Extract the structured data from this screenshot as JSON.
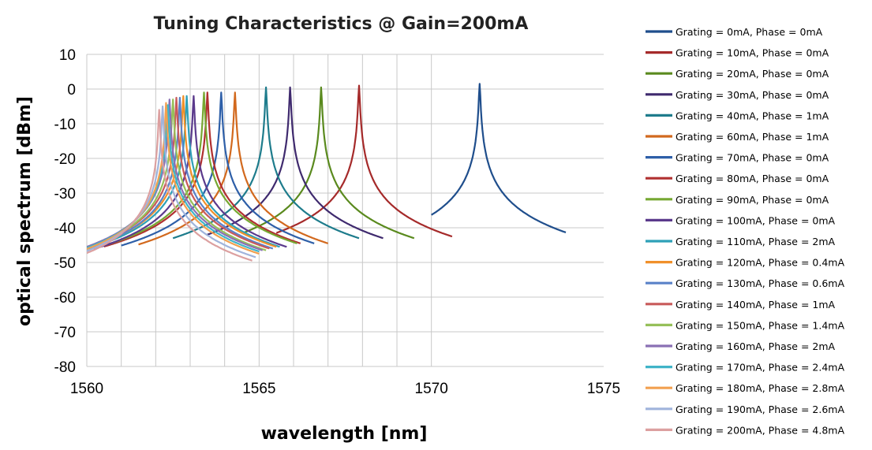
{
  "chart_data": {
    "type": "line",
    "title": "Tuning Characteristics @ Gain=200mA",
    "xlabel": "wavelength [nm]",
    "ylabel": "optical spectrum [dBm]",
    "xlim": [
      1560,
      1575
    ],
    "ylim": [
      -80,
      10
    ],
    "xticks": [
      1560,
      1565,
      1570,
      1575
    ],
    "yticks": [
      10,
      0,
      -10,
      -20,
      -30,
      -40,
      -50,
      -60,
      -70,
      -80
    ],
    "x_gridlines": [
      1560,
      1561,
      1562,
      1563,
      1564,
      1565,
      1566,
      1567,
      1568,
      1569,
      1570
    ],
    "grid": true,
    "legend_position": "right",
    "series": [
      {
        "name": "Grating = 0mA, Phase = 0mA",
        "color": "#1f4e8c",
        "peak_x": 1571.4,
        "peak_y": 1.5,
        "range": [
          1570.0,
          1573.9
        ]
      },
      {
        "name": "Grating = 10mA, Phase = 0mA",
        "color": "#a52a2a",
        "peak_x": 1567.9,
        "peak_y": 1.0,
        "range": [
          1565.5,
          1570.6
        ]
      },
      {
        "name": "Grating = 20mA, Phase = 0mA",
        "color": "#5a8a1e",
        "peak_x": 1566.8,
        "peak_y": 0.5,
        "range": [
          1564.5,
          1569.5
        ]
      },
      {
        "name": "Grating = 30mA, Phase = 0mA",
        "color": "#3f2a6e",
        "peak_x": 1565.9,
        "peak_y": 0.5,
        "range": [
          1563.5,
          1568.6
        ]
      },
      {
        "name": "Grating = 40mA, Phase = 1mA",
        "color": "#1e7c8c",
        "peak_x": 1565.2,
        "peak_y": 0.5,
        "range": [
          1562.5,
          1567.9
        ]
      },
      {
        "name": "Grating = 60mA, Phase = 1mA",
        "color": "#d2691e",
        "peak_x": 1564.3,
        "peak_y": -1.0,
        "range": [
          1561.5,
          1567.0
        ]
      },
      {
        "name": "Grating = 70mA, Phase = 0mA",
        "color": "#2e5fa8",
        "peak_x": 1563.9,
        "peak_y": -1.0,
        "range": [
          1561.0,
          1566.6
        ]
      },
      {
        "name": "Grating = 80mA, Phase = 0mA",
        "color": "#b03030",
        "peak_x": 1563.5,
        "peak_y": -1.0,
        "range": [
          1560.5,
          1566.2
        ]
      },
      {
        "name": "Grating = 90mA, Phase = 0mA",
        "color": "#76a832",
        "peak_x": 1563.4,
        "peak_y": -1.0,
        "range": [
          1560.4,
          1566.1
        ]
      },
      {
        "name": "Grating = 100mA, Phase = 0mA",
        "color": "#5b3a8c",
        "peak_x": 1563.1,
        "peak_y": -2.0,
        "range": [
          1560.2,
          1565.8
        ]
      },
      {
        "name": "Grating = 110mA, Phase = 2mA",
        "color": "#2ea0b8",
        "peak_x": 1562.9,
        "peak_y": -2.0,
        "range": [
          1560.0,
          1565.6
        ]
      },
      {
        "name": "Grating = 120mA, Phase = 0.4mA",
        "color": "#f0902a",
        "peak_x": 1562.8,
        "peak_y": -2.0,
        "range": [
          1560.0,
          1565.5
        ]
      },
      {
        "name": "Grating = 130mA, Phase = 0.6mA",
        "color": "#5a82c8",
        "peak_x": 1562.7,
        "peak_y": -2.5,
        "range": [
          1560.0,
          1565.4
        ]
      },
      {
        "name": "Grating = 140mA, Phase = 1mA",
        "color": "#c85a5a",
        "peak_x": 1562.6,
        "peak_y": -2.5,
        "range": [
          1560.0,
          1565.3
        ]
      },
      {
        "name": "Grating = 150mA, Phase = 1.4mA",
        "color": "#96c05a",
        "peak_x": 1562.5,
        "peak_y": -3.0,
        "range": [
          1560.0,
          1565.2
        ]
      },
      {
        "name": "Grating = 160mA, Phase = 2mA",
        "color": "#8a70b4",
        "peak_x": 1562.4,
        "peak_y": -3.0,
        "range": [
          1560.0,
          1565.1
        ]
      },
      {
        "name": "Grating = 170mA, Phase = 2.4mA",
        "color": "#40b4c8",
        "peak_x": 1562.35,
        "peak_y": -3.5,
        "range": [
          1560.0,
          1565.0
        ]
      },
      {
        "name": "Grating = 180mA, Phase = 2.8mA",
        "color": "#f2a050",
        "peak_x": 1562.3,
        "peak_y": -4.0,
        "range": [
          1560.0,
          1565.0
        ]
      },
      {
        "name": "Grating = 190mA, Phase = 2.6mA",
        "color": "#a0b4dc",
        "peak_x": 1562.2,
        "peak_y": -5.0,
        "range": [
          1560.0,
          1564.9
        ]
      },
      {
        "name": "Grating = 200mA, Phase = 4.8mA",
        "color": "#dca0a0",
        "peak_x": 1562.1,
        "peak_y": -6.0,
        "range": [
          1560.0,
          1564.8
        ]
      }
    ]
  }
}
